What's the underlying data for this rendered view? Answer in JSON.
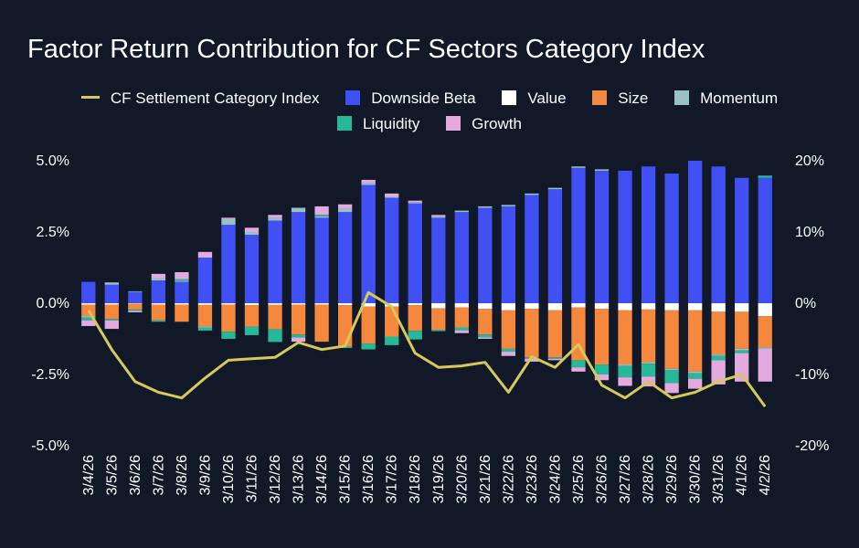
{
  "chart_data": {
    "type": "bar",
    "stacked": true,
    "title": "Factor Return Contribution for CF Sectors Category Index",
    "categories": [
      "3/4/26",
      "3/5/26",
      "3/6/26",
      "3/7/26",
      "3/8/26",
      "3/9/26",
      "3/10/26",
      "3/11/26",
      "3/12/26",
      "3/13/26",
      "3/14/26",
      "3/15/26",
      "3/16/26",
      "3/17/26",
      "3/18/26",
      "3/19/26",
      "3/20/26",
      "3/21/26",
      "3/22/26",
      "3/23/26",
      "3/24/26",
      "3/25/26",
      "3/26/26",
      "3/27/26",
      "3/28/26",
      "3/29/26",
      "3/30/26",
      "3/31/26",
      "4/1/26",
      "4/2/26"
    ],
    "ylim": [
      -5.0,
      5.0
    ],
    "y2lim": [
      -20,
      20
    ],
    "y_ticks": [
      "-5.0%",
      "-2.5%",
      "0.0%",
      "2.5%",
      "5.0%"
    ],
    "y_tick_values": [
      -5.0,
      -2.5,
      0.0,
      2.5,
      5.0
    ],
    "y2_ticks": [
      "-20%",
      "-10%",
      "0%",
      "10%",
      "20%"
    ],
    "y2_tick_values": [
      -20,
      -10,
      0,
      10,
      20
    ],
    "series": [
      {
        "name": "Downside Beta",
        "color": "#4150f5",
        "axis": "left",
        "values": [
          0.75,
          0.65,
          0.4,
          0.8,
          0.75,
          1.6,
          2.75,
          2.4,
          2.9,
          3.2,
          3.0,
          3.2,
          4.15,
          3.7,
          3.5,
          3.0,
          3.2,
          3.35,
          3.4,
          3.8,
          4.0,
          4.75,
          4.65,
          4.65,
          4.8,
          4.55,
          5.0,
          4.8,
          4.4,
          4.4
        ]
      },
      {
        "name": "Value",
        "color": "#ffffff",
        "axis": "left",
        "values": [
          -0.05,
          -0.05,
          -0.02,
          -0.05,
          -0.05,
          -0.06,
          -0.05,
          -0.07,
          -0.06,
          -0.05,
          -0.05,
          -0.07,
          -0.12,
          -0.12,
          -0.07,
          -0.18,
          -0.15,
          -0.2,
          -0.25,
          -0.2,
          -0.25,
          -0.15,
          -0.2,
          -0.25,
          -0.22,
          -0.25,
          -0.25,
          -0.3,
          -0.3,
          -0.45
        ]
      },
      {
        "name": "Size",
        "color": "#f5883d",
        "axis": "left",
        "values": [
          -0.4,
          -0.5,
          -0.2,
          -0.55,
          -0.6,
          -0.75,
          -0.95,
          -0.75,
          -0.85,
          -1.05,
          -1.3,
          -1.45,
          -1.3,
          -1.05,
          -0.9,
          -0.75,
          -0.7,
          -0.9,
          -1.35,
          -1.7,
          -1.65,
          -1.85,
          -1.95,
          -1.9,
          -1.85,
          -2.05,
          -2.15,
          -1.5,
          -1.3,
          -1.1
        ]
      },
      {
        "name": "Momentum",
        "color": "#99c1c6",
        "axis": "left",
        "values": [
          -0.05,
          0.08,
          0.02,
          0.08,
          0.04,
          -0.05,
          0.2,
          0.1,
          0.1,
          0.15,
          0.05,
          0.12,
          0.08,
          0.05,
          0.05,
          0.05,
          0.05,
          0.05,
          0.05,
          0.05,
          0.05,
          0.05,
          0.05,
          -0.05,
          -0.05,
          -0.05,
          -0.05,
          -0.05,
          -0.05,
          -0.05
        ]
      },
      {
        "name": "Liquidity",
        "color": "#25b99a",
        "axis": "left",
        "values": [
          -0.1,
          -0.05,
          -0.05,
          -0.05,
          0.05,
          -0.1,
          -0.25,
          -0.3,
          -0.45,
          -0.1,
          0.05,
          -0.05,
          -0.2,
          -0.3,
          -0.3,
          -0.05,
          -0.1,
          -0.1,
          -0.1,
          -0.05,
          -0.05,
          -0.25,
          -0.35,
          -0.4,
          -0.45,
          -0.45,
          -0.2,
          -0.15,
          -0.1,
          0.08
        ]
      },
      {
        "name": "Growth",
        "color": "#e2aadf",
        "axis": "left",
        "values": [
          -0.2,
          -0.3,
          -0.05,
          0.15,
          0.25,
          0.2,
          0.05,
          0.15,
          0.1,
          -0.15,
          0.3,
          0.15,
          0.1,
          0.1,
          0.05,
          0.05,
          -0.1,
          -0.05,
          -0.15,
          -0.1,
          -0.05,
          -0.15,
          -0.2,
          -0.3,
          -0.35,
          -0.35,
          -0.35,
          -0.85,
          -1.0,
          -1.15
        ]
      },
      {
        "name": "CF Settlement Category Index",
        "color": "#d6c95a",
        "axis": "right",
        "type": "line",
        "values": [
          -1.0,
          -6.5,
          -11.0,
          -12.5,
          -13.3,
          -10.5,
          -8.0,
          -7.8,
          -7.6,
          -5.5,
          -6.5,
          -6.0,
          1.5,
          -0.5,
          -7.0,
          -9.0,
          -8.8,
          -8.3,
          -12.5,
          -7.5,
          -9.0,
          -5.8,
          -11.5,
          -13.3,
          -11.0,
          -13.3,
          -12.5,
          -11.0,
          -10.0,
          -14.5
        ]
      }
    ]
  },
  "legend": {
    "items": [
      {
        "label": "CF Settlement Category Index",
        "color": "#d6c95a",
        "kind": "line"
      },
      {
        "label": "Downside Beta",
        "color": "#4150f5",
        "kind": "box"
      },
      {
        "label": "Value",
        "color": "#ffffff",
        "kind": "box"
      },
      {
        "label": "Size",
        "color": "#f5883d",
        "kind": "box"
      },
      {
        "label": "Momentum",
        "color": "#99c1c6",
        "kind": "box"
      },
      {
        "label": "Liquidity",
        "color": "#25b99a",
        "kind": "box"
      },
      {
        "label": "Growth",
        "color": "#e2aadf",
        "kind": "box"
      }
    ]
  },
  "colors": {
    "background": "#111827",
    "text": "#ffffff"
  }
}
